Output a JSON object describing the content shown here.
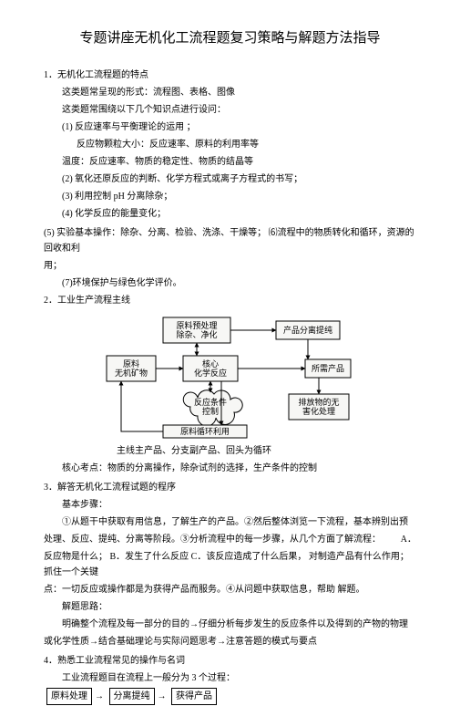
{
  "title": "专题讲座无机化工流程题复习策略与解题方法指导",
  "s1": {
    "num": "1",
    "heading": "．无机化工流程题的特点",
    "l1": "这类题常呈现的形式：流程图、表格、图像",
    "l2": "这类题常围绕以下几个知识点进行设问：",
    "i1n": "(1)",
    "i1t": "反应速率与平衡理论的运用      ；",
    "i1s": "反应物颗粒大小：反应速率、原料的利用率等",
    "l3": "温度：反应速率、物质的稳定性、物质的结晶等",
    "i2n": "(2)",
    "i2t": "氧化还原反应的判断、化学方程式或离子方程式的书写；",
    "i3n": "(3)",
    "i3t": "利用控制 pH 分离除杂；",
    "i4n": "(4)",
    "i4t": "化学反应的能量变化；",
    "i5n": "(5)",
    "i5t": "实验基本操作：除杂、分离、检验、洗涤、干燥等；  ⑹流程中的物质转化和循环，资源的回收和利",
    "i5s": "用；",
    "i7n": "(7)",
    "i7t": "环境保护与绿色化学评价。"
  },
  "s2": {
    "num": "2",
    "heading": "．工业生产流程主线",
    "diagram": {
      "n1": "原料预处理\n除杂、净化",
      "n2": "产品分离提纯",
      "n3": "原料\n无机矿物",
      "n4": "核心\n化学反应",
      "n5": "所需产品",
      "n6": "反应条件\n控制",
      "n7": "排放物的无\n害化处理",
      "n8": "原料循环利用",
      "stroke": "#000000",
      "fill": "#f7f7f5"
    },
    "l1": "主线主产品、分支副产品、回头为循环",
    "l2": "核心考点：物质的分离操作，除杂试剂的选择，生产条件的控制"
  },
  "s3": {
    "num": "3",
    "heading": "．解答无机化工流程试题的程序",
    "l1": "基本步骤：",
    "l2": "①从题干中获取有用信息，了解生产的产品。②然后整体浏览一下流程，基本辨别出预",
    "l3": "处理、反应、提纯、分离等阶段。③分析流程中的每一步骤，从几个方面了解流程：",
    "l3r": "A．",
    "l4": "反应物是什么； B．发生了什么反应 C．该反应造成了什么后果，  对制造产品有什么作用；   抓住一个关键",
    "l5": "点：一切反应或操作都是为获得产品而服务。④从问题中获取信息，帮助    解题。",
    "l6": "解题思路：",
    "l7": "明确整个流程及每一部分的目的→仔细分析每步发生的反应条件以及得到的产物的物理",
    "l8": "或化学性质→结合基础理论与实际问题思考→注意答题的模式与要点"
  },
  "s4": {
    "num": "4",
    "heading": "．熟悉工业流程常见的操作与名词",
    "l1": "工业流程题目在流程上一般分为       3 个过程：",
    "b1": "原料处理",
    "arrow": "→",
    "b2": "分离提纯",
    "b3": "获得产品"
  }
}
